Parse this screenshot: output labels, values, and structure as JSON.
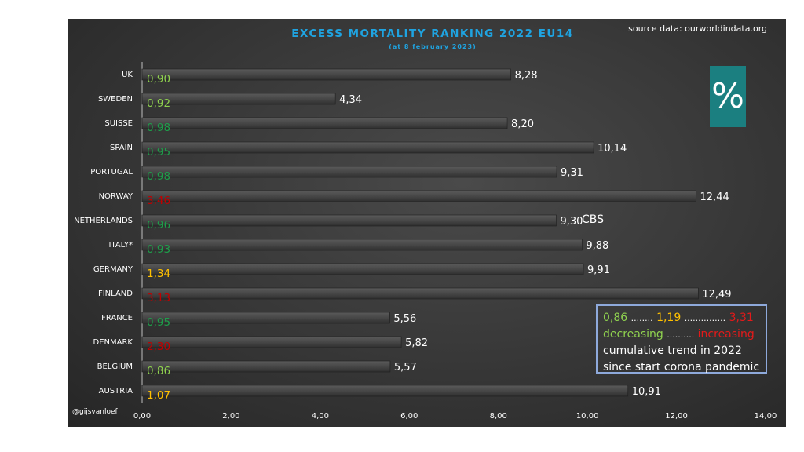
{
  "header": {
    "title": "EXCESS MORTALITY  RANKING  2022  EU14",
    "subtitle": "(at  8 february  2023)",
    "source": "source data: ourworldindata.org",
    "percent_symbol": "%",
    "watermark": "@gijsvanloef",
    "annotation": "CBS"
  },
  "legend": {
    "low_value": "0,86",
    "mid_value": "1,19",
    "high_value": "3,31",
    "dots_1": "........",
    "dots_2": "...............",
    "decreasing": "decreasing",
    "dots_3": "..........",
    "increasing": "increasing",
    "line3": "cumulative trend in 2022",
    "line4": "since start corona pandemic"
  },
  "colors": {
    "decreasing_light": "#8fd14f",
    "decreasing_dark": "#1e9e4a",
    "neutral": "#ffc000",
    "increasing": "#c00000",
    "bar": "#4a4a4a",
    "title": "#1fa3e0",
    "percent_box": "#1b7f80"
  },
  "chart_data": {
    "type": "bar",
    "orientation": "horizontal",
    "title": "EXCESS MORTALITY  RANKING  2022  EU14",
    "subtitle": "(at  8 february  2023)",
    "xlim": [
      0,
      14
    ],
    "xticks": [
      "0,00",
      "2,00",
      "4,00",
      "6,00",
      "8,00",
      "10,00",
      "12,00",
      "14,00"
    ],
    "grid": false,
    "categories": [
      "UK",
      "SWEDEN",
      "SUISSE",
      "SPAIN",
      "PORTUGAL",
      "NORWAY",
      "NETHERLANDS",
      "ITALY*",
      "GERMANY",
      "FINLAND",
      "FRANCE",
      "DENMARK",
      "BELGIUM",
      "AUSTRIA"
    ],
    "values": [
      8.28,
      4.34,
      8.2,
      10.14,
      9.31,
      12.44,
      9.3,
      9.88,
      9.91,
      12.49,
      5.56,
      5.82,
      5.57,
      10.91
    ],
    "value_labels": [
      "8,28",
      "4,34",
      "8,20",
      "10,14",
      "9,31",
      "12,44",
      "9,30",
      "9,88",
      "9,91",
      "12,49",
      "5,56",
      "5,82",
      "5,57",
      "10,91"
    ],
    "trend_labels": [
      "0,90",
      "0,92",
      "0,98",
      "0,95",
      "0,98",
      "3,46",
      "0,96",
      "0,93",
      "1,34",
      "3,13",
      "0,95",
      "2,30",
      "0,86",
      "1,07"
    ],
    "trend_colors": [
      "#8fd14f",
      "#8fd14f",
      "#1e9e4a",
      "#1e9e4a",
      "#1e9e4a",
      "#c00000",
      "#1e9e4a",
      "#1e9e4a",
      "#ffc000",
      "#c00000",
      "#1e9e4a",
      "#c00000",
      "#8fd14f",
      "#ffc000"
    ]
  }
}
